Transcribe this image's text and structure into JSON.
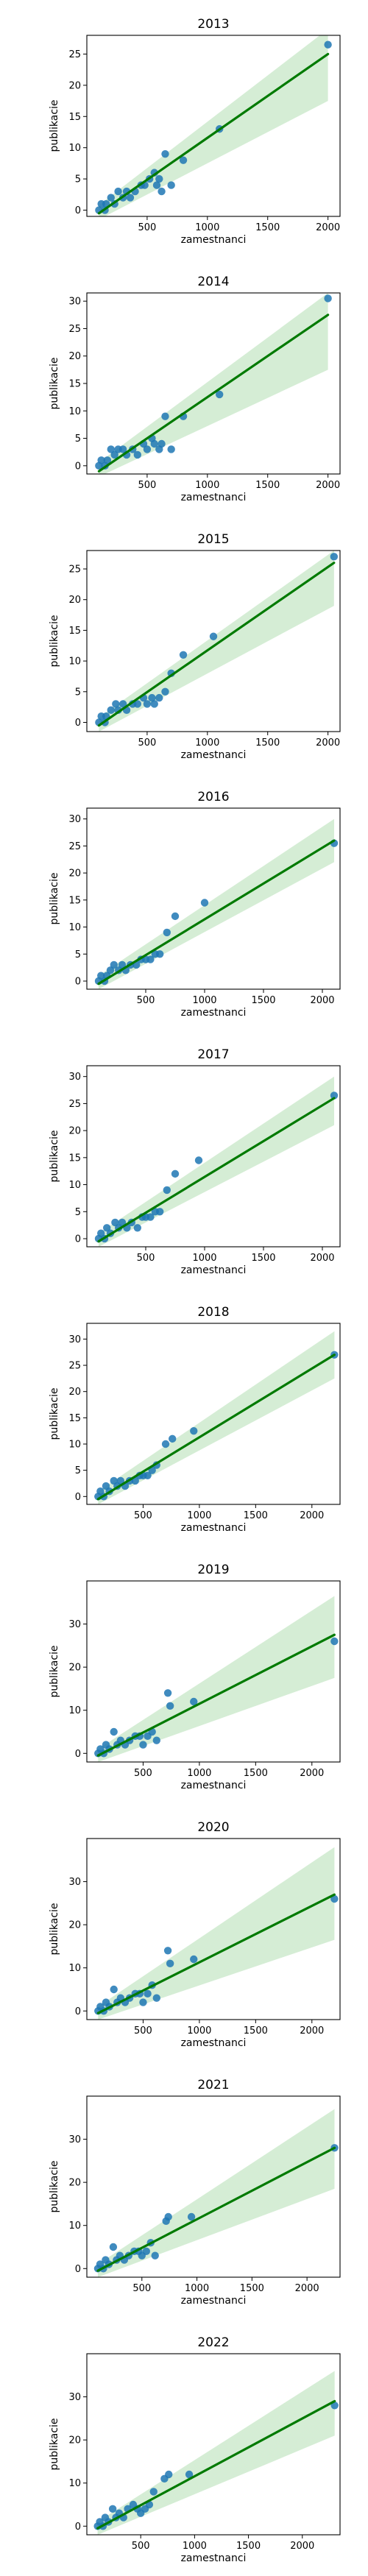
{
  "colors": {
    "points": "#1f77b4",
    "fit_line": "#007a00",
    "ci_band": "#bfe3bf",
    "axes": "#000000"
  },
  "chart_data": [
    {
      "type": "scatter",
      "title": "2013",
      "xlabel": "zamestnanci",
      "ylabel": "publikacie",
      "xlim": [
        0,
        2100
      ],
      "ylim": [
        -1,
        28
      ],
      "xticks": [
        500,
        1000,
        1500,
        2000
      ],
      "yticks": [
        0,
        5,
        10,
        15,
        20,
        25
      ],
      "points": {
        "x": [
          100,
          120,
          150,
          160,
          200,
          230,
          260,
          300,
          330,
          360,
          400,
          450,
          480,
          520,
          560,
          580,
          600,
          620,
          650,
          700,
          800,
          1100,
          2000
        ],
        "y": [
          0,
          1,
          0,
          1,
          2,
          1,
          3,
          2,
          3,
          2,
          3,
          4,
          4,
          5,
          6,
          4,
          5,
          3,
          9,
          4,
          8,
          13,
          26.5
        ]
      },
      "fit": {
        "x": [
          100,
          2000
        ],
        "y": [
          -0.5,
          25.0
        ]
      },
      "ci": {
        "x": [
          100,
          2000
        ],
        "upper": [
          0.8,
          29.0
        ],
        "lower": [
          -1.5,
          17.5
        ]
      }
    },
    {
      "type": "scatter",
      "title": "2014",
      "xlabel": "zamestnanci",
      "ylabel": "publikacie",
      "xlim": [
        0,
        2100
      ],
      "ylim": [
        -1.5,
        31.5
      ],
      "xticks": [
        500,
        1000,
        1500,
        2000
      ],
      "yticks": [
        0,
        5,
        10,
        15,
        20,
        25,
        30
      ],
      "points": {
        "x": [
          100,
          120,
          150,
          170,
          200,
          230,
          260,
          300,
          330,
          380,
          420,
          470,
          500,
          540,
          560,
          600,
          620,
          650,
          700,
          800,
          1100,
          2000
        ],
        "y": [
          0,
          1,
          0,
          1,
          3,
          2,
          3,
          3,
          2,
          3,
          2,
          4,
          3,
          5,
          4,
          3,
          4,
          9,
          3,
          9,
          13,
          30.5
        ]
      },
      "fit": {
        "x": [
          100,
          2000
        ],
        "y": [
          -1.0,
          27.5
        ]
      },
      "ci": {
        "x": [
          100,
          2000
        ],
        "upper": [
          0.6,
          31.5
        ],
        "lower": [
          -2.0,
          17.5
        ]
      }
    },
    {
      "type": "scatter",
      "title": "2015",
      "xlabel": "zamestnanci",
      "ylabel": "publikacie",
      "xlim": [
        0,
        2100
      ],
      "ylim": [
        -1.5,
        28
      ],
      "xticks": [
        500,
        1000,
        1500,
        2000
      ],
      "yticks": [
        0,
        5,
        10,
        15,
        20,
        25
      ],
      "points": {
        "x": [
          100,
          120,
          150,
          160,
          200,
          240,
          260,
          300,
          330,
          380,
          420,
          470,
          500,
          540,
          560,
          600,
          650,
          700,
          800,
          1050,
          2050
        ],
        "y": [
          0,
          1,
          0,
          1,
          2,
          3,
          2,
          3,
          2,
          3,
          3,
          4,
          3,
          4,
          3,
          4,
          5,
          8,
          11,
          14,
          27
        ]
      },
      "fit": {
        "x": [
          100,
          2050
        ],
        "y": [
          -0.5,
          26.0
        ]
      },
      "ci": {
        "x": [
          100,
          2050
        ],
        "upper": [
          0.8,
          28.0
        ],
        "lower": [
          -1.5,
          19.0
        ]
      }
    },
    {
      "type": "scatter",
      "title": "2016",
      "xlabel": "zamestnanci",
      "ylabel": "publikacie",
      "xlim": [
        0,
        2150
      ],
      "ylim": [
        -1.5,
        32
      ],
      "xticks": [
        500,
        1000,
        1500,
        2000
      ],
      "yticks": [
        0,
        5,
        10,
        15,
        20,
        25,
        30
      ],
      "points": {
        "x": [
          100,
          120,
          150,
          170,
          200,
          230,
          270,
          300,
          330,
          370,
          420,
          460,
          500,
          540,
          580,
          620,
          680,
          750,
          1000,
          2100
        ],
        "y": [
          0,
          1,
          0,
          1,
          2,
          3,
          2,
          3,
          2,
          3,
          3,
          4,
          4,
          4,
          5,
          5,
          9,
          12,
          14.5,
          25.5
        ]
      },
      "fit": {
        "x": [
          100,
          2100
        ],
        "y": [
          -0.5,
          26.0
        ]
      },
      "ci": {
        "x": [
          100,
          2100
        ],
        "upper": [
          1.0,
          30.0
        ],
        "lower": [
          -1.5,
          22.0
        ]
      }
    },
    {
      "type": "scatter",
      "title": "2017",
      "xlabel": "zamestnanci",
      "ylabel": "publikacie",
      "xlim": [
        0,
        2150
      ],
      "ylim": [
        -1.5,
        32
      ],
      "xticks": [
        500,
        1000,
        1500,
        2000
      ],
      "yticks": [
        0,
        5,
        10,
        15,
        20,
        25,
        30
      ],
      "points": {
        "x": [
          100,
          120,
          150,
          170,
          200,
          240,
          270,
          300,
          340,
          380,
          430,
          470,
          500,
          540,
          580,
          620,
          680,
          750,
          950,
          2100
        ],
        "y": [
          0,
          1,
          0,
          2,
          1,
          3,
          2,
          3,
          2,
          3,
          2,
          4,
          4,
          4,
          5,
          5,
          9,
          12,
          14.5,
          26.5
        ]
      },
      "fit": {
        "x": [
          100,
          2100
        ],
        "y": [
          -0.5,
          26.0
        ]
      },
      "ci": {
        "x": [
          100,
          2100
        ],
        "upper": [
          1.0,
          30.0
        ],
        "lower": [
          -1.5,
          21.0
        ]
      }
    },
    {
      "type": "scatter",
      "title": "2018",
      "xlabel": "zamestnanci",
      "ylabel": "publikacie",
      "xlim": [
        0,
        2250
      ],
      "ylim": [
        -1.5,
        33
      ],
      "xticks": [
        500,
        1000,
        1500,
        2000
      ],
      "yticks": [
        0,
        5,
        10,
        15,
        20,
        25,
        30
      ],
      "points": {
        "x": [
          100,
          120,
          150,
          170,
          200,
          240,
          270,
          300,
          340,
          380,
          430,
          470,
          500,
          540,
          580,
          620,
          700,
          760,
          950,
          2200
        ],
        "y": [
          0,
          1,
          0,
          2,
          1,
          3,
          2,
          3,
          2,
          3,
          3,
          4,
          4,
          4,
          5,
          6,
          10,
          11,
          12.5,
          27
        ]
      },
      "fit": {
        "x": [
          100,
          2200
        ],
        "y": [
          -0.5,
          27.0
        ]
      },
      "ci": {
        "x": [
          100,
          2200
        ],
        "upper": [
          1.0,
          31.5
        ],
        "lower": [
          -1.5,
          22.5
        ]
      }
    },
    {
      "type": "scatter",
      "title": "2019",
      "xlabel": "zamestnanci",
      "ylabel": "publikacie",
      "xlim": [
        0,
        2250
      ],
      "ylim": [
        -2,
        40
      ],
      "xticks": [
        500,
        1000,
        1500,
        2000
      ],
      "yticks": [
        0,
        10,
        20,
        30
      ],
      "points": {
        "x": [
          100,
          120,
          150,
          170,
          200,
          240,
          270,
          300,
          340,
          380,
          430,
          470,
          500,
          540,
          580,
          620,
          720,
          740,
          950,
          2200
        ],
        "y": [
          0,
          1,
          0,
          2,
          1,
          5,
          2,
          3,
          2,
          3,
          4,
          4,
          2,
          4,
          5,
          3,
          14,
          11,
          12,
          26
        ]
      },
      "fit": {
        "x": [
          100,
          2200
        ],
        "y": [
          -0.5,
          27.5
        ]
      },
      "ci": {
        "x": [
          100,
          2200
        ],
        "upper": [
          1.0,
          36.5
        ],
        "lower": [
          -2.0,
          17.5
        ]
      }
    },
    {
      "type": "scatter",
      "title": "2020",
      "xlabel": "zamestnanci",
      "ylabel": "publikacie",
      "xlim": [
        0,
        2250
      ],
      "ylim": [
        -2,
        40
      ],
      "xticks": [
        500,
        1000,
        1500,
        2000
      ],
      "yticks": [
        0,
        10,
        20,
        30
      ],
      "points": {
        "x": [
          100,
          120,
          150,
          170,
          200,
          240,
          270,
          300,
          340,
          380,
          430,
          470,
          500,
          540,
          580,
          620,
          720,
          740,
          950,
          2200
        ],
        "y": [
          0,
          1,
          0,
          2,
          1,
          5,
          2,
          3,
          2,
          3,
          4,
          4,
          2,
          4,
          6,
          3,
          14,
          11,
          12,
          26
        ]
      },
      "fit": {
        "x": [
          100,
          2200
        ],
        "y": [
          -0.5,
          27.0
        ]
      },
      "ci": {
        "x": [
          100,
          2200
        ],
        "upper": [
          1.0,
          38.0
        ],
        "lower": [
          -2.0,
          16.5
        ]
      }
    },
    {
      "type": "scatter",
      "title": "2021",
      "xlabel": "zamestnanci",
      "ylabel": "publikacie",
      "xlim": [
        0,
        2300
      ],
      "ylim": [
        -2,
        40
      ],
      "xticks": [
        500,
        1000,
        1500,
        2000
      ],
      "yticks": [
        0,
        10,
        20,
        30
      ],
      "points": {
        "x": [
          100,
          120,
          150,
          170,
          200,
          240,
          270,
          300,
          340,
          380,
          430,
          470,
          500,
          540,
          580,
          620,
          720,
          740,
          950,
          2250
        ],
        "y": [
          0,
          1,
          0,
          2,
          1,
          5,
          2,
          3,
          2,
          3,
          4,
          4,
          3,
          4,
          6,
          3,
          11,
          12,
          12,
          28
        ]
      },
      "fit": {
        "x": [
          100,
          2250
        ],
        "y": [
          -0.5,
          28.0
        ]
      },
      "ci": {
        "x": [
          100,
          2250
        ],
        "upper": [
          1.0,
          37.0
        ],
        "lower": [
          -2.0,
          18.5
        ]
      }
    },
    {
      "type": "scatter",
      "title": "2022",
      "xlabel": "zamestnanci",
      "ylabel": "publikacie",
      "xlim": [
        0,
        2350
      ],
      "ylim": [
        -2,
        40
      ],
      "xticks": [
        500,
        1000,
        1500,
        2000
      ],
      "yticks": [
        0,
        10,
        20,
        30
      ],
      "points": {
        "x": [
          100,
          120,
          150,
          170,
          200,
          240,
          270,
          300,
          340,
          380,
          430,
          470,
          500,
          540,
          580,
          620,
          720,
          760,
          950,
          2300
        ],
        "y": [
          0,
          1,
          0,
          2,
          1,
          4,
          2,
          3,
          2,
          4,
          5,
          4,
          3,
          4,
          5,
          8,
          11,
          12,
          12,
          28
        ]
      },
      "fit": {
        "x": [
          100,
          2300
        ],
        "y": [
          -0.5,
          29.0
        ]
      },
      "ci": {
        "x": [
          100,
          2300
        ],
        "upper": [
          1.0,
          36.0
        ],
        "lower": [
          -2.0,
          21.0
        ]
      }
    }
  ]
}
